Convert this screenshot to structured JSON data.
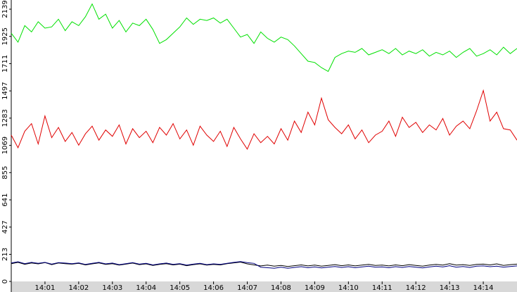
{
  "chart_data": {
    "type": "line",
    "x": [
      840,
      840.2,
      840.4,
      840.6,
      840.8,
      841,
      841.2,
      841.4,
      841.6,
      841.8,
      842,
      842.2,
      842.4,
      842.6,
      842.8,
      843,
      843.2,
      843.4,
      843.6,
      843.8,
      844,
      844.2,
      844.4,
      844.6,
      844.8,
      845,
      845.2,
      845.4,
      845.6,
      845.8,
      846,
      846.2,
      846.4,
      846.6,
      846.8,
      847,
      847.2,
      847.4,
      847.6,
      847.8,
      848,
      848.2,
      848.4,
      848.6,
      848.8,
      849,
      849.2,
      849.4,
      849.6,
      849.8,
      850,
      850.2,
      850.4,
      850.6,
      850.8,
      851,
      851.2,
      851.4,
      851.6,
      851.8,
      852,
      852.2,
      852.4,
      852.6,
      852.8,
      853,
      853.2,
      853.4,
      853.6,
      853.8,
      854,
      854.2,
      854.4,
      854.6,
      854.8,
      855
    ],
    "xlim": [
      840,
      855
    ],
    "xticks": [
      {
        "value": 841,
        "label": "14:01"
      },
      {
        "value": 842,
        "label": "14:02"
      },
      {
        "value": 843,
        "label": "14:03"
      },
      {
        "value": 844,
        "label": "14:04"
      },
      {
        "value": 845,
        "label": "14:05"
      },
      {
        "value": 846,
        "label": "14:06"
      },
      {
        "value": 847,
        "label": "14:07"
      },
      {
        "value": 848,
        "label": "14:08"
      },
      {
        "value": 849,
        "label": "14:09"
      },
      {
        "value": 850,
        "label": "14:10"
      },
      {
        "value": 851,
        "label": "14:11"
      },
      {
        "value": 852,
        "label": "14:12"
      },
      {
        "value": 853,
        "label": "14:13"
      },
      {
        "value": 854,
        "label": "14:14"
      }
    ],
    "ylim": [
      0,
      2200
    ],
    "yticks": [
      0,
      213,
      427,
      641,
      855,
      1069,
      1283,
      1497,
      1711,
      1925,
      2139
    ],
    "series": [
      {
        "color": "#00e000",
        "values": [
          1950,
          1880,
          2010,
          1960,
          2040,
          1990,
          2000,
          2060,
          1970,
          2040,
          2010,
          2080,
          2180,
          2060,
          2100,
          1990,
          2050,
          1960,
          2030,
          2010,
          2060,
          1980,
          1870,
          1900,
          1950,
          2000,
          2070,
          2020,
          2060,
          2050,
          2070,
          2030,
          2060,
          1990,
          1920,
          1940,
          1870,
          1960,
          1910,
          1880,
          1920,
          1900,
          1850,
          1790,
          1730,
          1720,
          1680,
          1650,
          1760,
          1790,
          1810,
          1800,
          1830,
          1780,
          1800,
          1820,
          1790,
          1830,
          1780,
          1810,
          1790,
          1820,
          1770,
          1800,
          1780,
          1810,
          1760,
          1800,
          1830,
          1770,
          1790,
          1820,
          1780,
          1840,
          1790,
          1830
        ]
      },
      {
        "color": "#e00000",
        "values": [
          1150,
          1050,
          1180,
          1240,
          1080,
          1300,
          1130,
          1210,
          1100,
          1170,
          1070,
          1160,
          1220,
          1110,
          1190,
          1140,
          1230,
          1080,
          1200,
          1130,
          1180,
          1090,
          1210,
          1150,
          1240,
          1120,
          1190,
          1070,
          1220,
          1150,
          1100,
          1180,
          1060,
          1210,
          1120,
          1040,
          1160,
          1090,
          1140,
          1080,
          1200,
          1110,
          1260,
          1170,
          1330,
          1230,
          1440,
          1270,
          1210,
          1160,
          1230,
          1120,
          1190,
          1090,
          1150,
          1180,
          1260,
          1140,
          1290,
          1210,
          1250,
          1170,
          1230,
          1190,
          1280,
          1150,
          1220,
          1260,
          1200,
          1340,
          1500,
          1260,
          1330,
          1200,
          1190,
          1110
        ]
      },
      {
        "color": "#000000",
        "values": [
          140,
          150,
          135,
          145,
          138,
          148,
          132,
          145,
          140,
          136,
          142,
          130,
          138,
          146,
          134,
          140,
          128,
          136,
          144,
          132,
          138,
          126,
          134,
          140,
          130,
          136,
          124,
          132,
          138,
          128,
          134,
          130,
          140,
          146,
          152,
          138,
          130,
          122,
          128,
          120,
          126,
          118,
          124,
          130,
          122,
          128,
          120,
          126,
          132,
          124,
          130,
          122,
          128,
          134,
          126,
          128,
          122,
          130,
          124,
          132,
          126,
          120,
          128,
          134,
          128,
          140,
          128,
          132,
          126,
          134,
          136,
          130,
          138,
          126,
          132,
          136
        ]
      },
      {
        "color": "#000080",
        "values": [
          145,
          155,
          140,
          150,
          142,
          150,
          136,
          148,
          144,
          140,
          146,
          134,
          142,
          150,
          138,
          144,
          132,
          140,
          148,
          136,
          142,
          130,
          138,
          144,
          134,
          140,
          128,
          136,
          142,
          132,
          138,
          134,
          142,
          150,
          156,
          148,
          142,
          112,
          108,
          104,
          112,
          104,
          110,
          116,
          108,
          114,
          106,
          112,
          118,
          110,
          116,
          108,
          114,
          120,
          112,
          114,
          108,
          116,
          110,
          118,
          112,
          106,
          114,
          120,
          114,
          124,
          112,
          118,
          110,
          120,
          122,
          116,
          120,
          112,
          118,
          122
        ]
      }
    ]
  }
}
